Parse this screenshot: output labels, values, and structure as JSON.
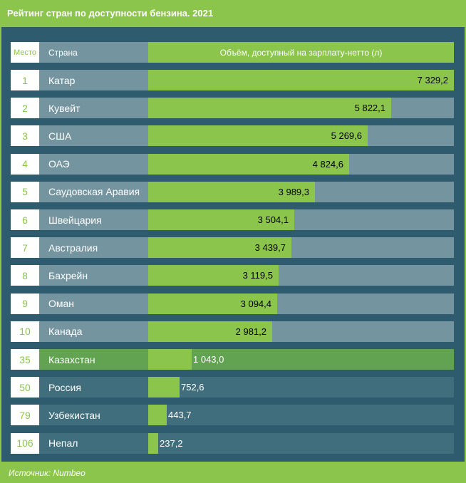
{
  "title": "Рейтинг стран по доступности бензина. 2021",
  "source": "Источник: Numbeo",
  "colors": {
    "accent": "#8bc54b",
    "panel": "#2e5b6e",
    "track": "#7495a0",
    "highlight": "#61a351",
    "track_low": "#416e7d"
  },
  "chart_data": {
    "type": "bar",
    "orientation": "horizontal",
    "title": "Рейтинг стран по доступности бензина. 2021",
    "columns": {
      "rank": "Место",
      "country": "Страна",
      "value": "Объём, доступный на зарплату-нетто (л)"
    },
    "ranks": [
      "1",
      "2",
      "3",
      "4",
      "5",
      "6",
      "7",
      "8",
      "9",
      "10",
      "35",
      "50",
      "79",
      "106"
    ],
    "categories": [
      "Катар",
      "Кувейт",
      "США",
      "ОАЭ",
      "Саудовская Аравия",
      "Швейцария",
      "Австралия",
      "Бахрейн",
      "Оман",
      "Канада",
      "Казахстан",
      "Россия",
      "Узбекистан",
      "Непал"
    ],
    "values": [
      7329.2,
      5822.1,
      5269.6,
      4824.6,
      3989.3,
      3504.1,
      3439.7,
      3119.5,
      3094.4,
      2981.2,
      1043.0,
      752.6,
      443.7,
      237.2
    ],
    "value_labels": [
      "7 329,2",
      "5 822,1",
      "5 269,6",
      "4 824,6",
      "3 989,3",
      "3 504,1",
      "3 439,7",
      "3 119,5",
      "3 094,4",
      "2 981,2",
      "1 043,0",
      "752,6",
      "443,7",
      "237,2"
    ],
    "highlight": "Казахстан",
    "xlim": [
      0,
      7329.2
    ],
    "source": "Источник: Numbeo"
  }
}
